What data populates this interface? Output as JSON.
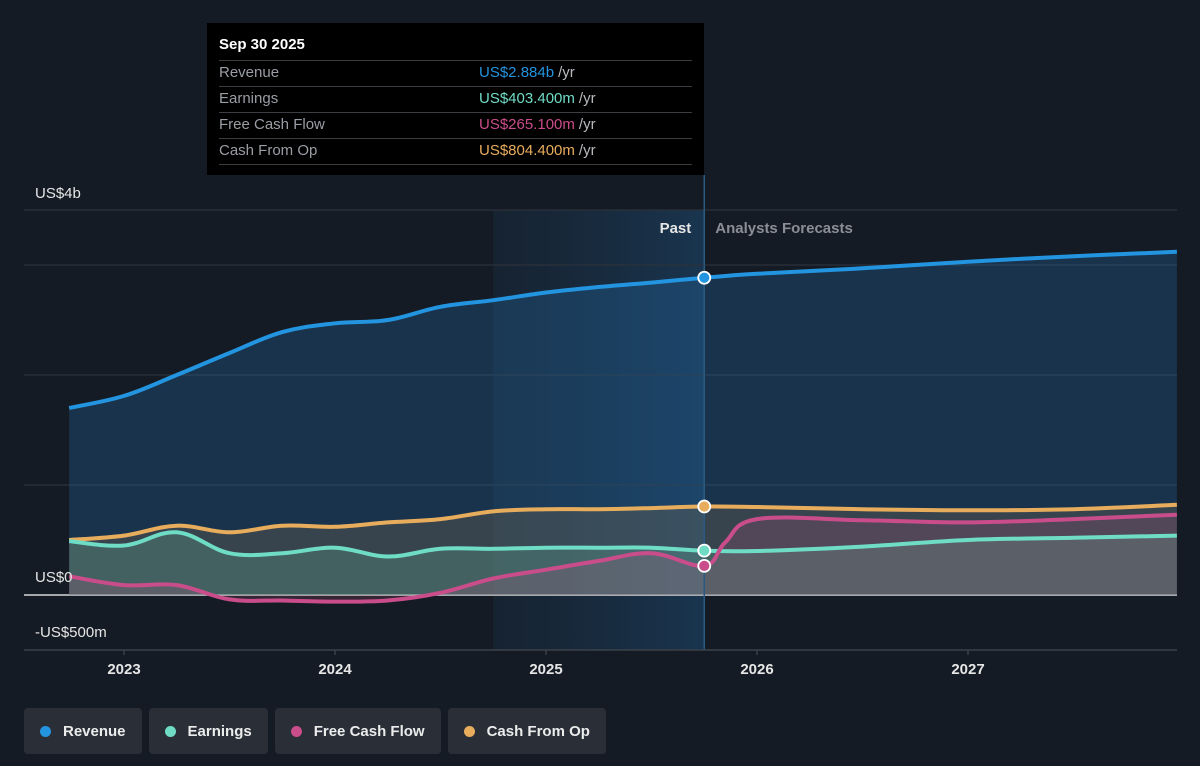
{
  "colors": {
    "revenue": "#2394df",
    "earnings": "#6fdcc6",
    "free_cash_flow": "#c94d8a",
    "cash_from_op": "#e8ad5c",
    "background": "#151b24"
  },
  "tooltip": {
    "date": "Sep 30 2025",
    "rows": [
      {
        "name": "Revenue",
        "value": "US$2.884b",
        "unit": "/yr"
      },
      {
        "name": "Earnings",
        "value": "US$403.400m",
        "unit": "/yr"
      },
      {
        "name": "Free Cash Flow",
        "value": "US$265.100m",
        "unit": "/yr"
      },
      {
        "name": "Cash From Op",
        "value": "US$804.400m",
        "unit": "/yr"
      }
    ]
  },
  "legend": [
    {
      "key": "revenue",
      "label": "Revenue"
    },
    {
      "key": "earnings",
      "label": "Earnings"
    },
    {
      "key": "free_cash_flow",
      "label": "Free Cash Flow"
    },
    {
      "key": "cash_from_op",
      "label": "Cash From Op"
    }
  ],
  "chart_data": {
    "type": "area",
    "title": "",
    "xlabel": "",
    "ylabel": "",
    "x_unit": "year",
    "y_unit": "US$ billions",
    "xlim": [
      2022.25,
      2027.99
    ],
    "ylim": [
      -0.5,
      3.5
    ],
    "y_tick_labels": [
      {
        "value": 3.5,
        "label": "US$4b"
      },
      {
        "value": 0,
        "label": "US$0"
      },
      {
        "value": -0.5,
        "label": "-US$500m"
      }
    ],
    "y_gridlines": [
      3.5,
      3.0,
      2.0,
      1.0,
      0,
      -0.5
    ],
    "x_ticks": [
      {
        "value": 2023,
        "label": "2023"
      },
      {
        "value": 2024,
        "label": "2024"
      },
      {
        "value": 2025,
        "label": "2025"
      },
      {
        "value": 2026,
        "label": "2026"
      },
      {
        "value": 2027,
        "label": "2027"
      }
    ],
    "regions": {
      "past_label": "Past",
      "forecast_label": "Analysts Forecasts",
      "highlight_start": 2024.75,
      "divider": 2025.75
    },
    "grid": true,
    "legend_position": "bottom-left",
    "series": [
      {
        "key": "revenue",
        "name": "Revenue",
        "past": [
          [
            2022.74,
            1.7
          ],
          [
            2023.0,
            1.81
          ],
          [
            2023.25,
            2.0
          ],
          [
            2023.5,
            2.2
          ],
          [
            2023.75,
            2.39
          ],
          [
            2024.0,
            2.47
          ],
          [
            2024.25,
            2.5
          ],
          [
            2024.5,
            2.62
          ],
          [
            2024.75,
            2.68
          ],
          [
            2025.0,
            2.75
          ],
          [
            2025.25,
            2.8
          ],
          [
            2025.5,
            2.84
          ],
          [
            2025.75,
            2.884
          ]
        ],
        "forecast": [
          [
            2025.75,
            2.884
          ],
          [
            2026.0,
            2.92
          ],
          [
            2026.5,
            2.97
          ],
          [
            2027.0,
            3.03
          ],
          [
            2027.5,
            3.08
          ],
          [
            2027.99,
            3.12
          ]
        ]
      },
      {
        "key": "cash_from_op",
        "name": "Cash From Op",
        "past": [
          [
            2022.74,
            0.5
          ],
          [
            2023.0,
            0.54
          ],
          [
            2023.25,
            0.63
          ],
          [
            2023.5,
            0.57
          ],
          [
            2023.75,
            0.63
          ],
          [
            2024.0,
            0.62
          ],
          [
            2024.25,
            0.66
          ],
          [
            2024.5,
            0.69
          ],
          [
            2024.75,
            0.76
          ],
          [
            2025.0,
            0.78
          ],
          [
            2025.25,
            0.78
          ],
          [
            2025.5,
            0.79
          ],
          [
            2025.75,
            0.804
          ]
        ],
        "forecast": [
          [
            2025.75,
            0.804
          ],
          [
            2026.0,
            0.8
          ],
          [
            2026.5,
            0.78
          ],
          [
            2027.0,
            0.77
          ],
          [
            2027.5,
            0.78
          ],
          [
            2027.99,
            0.82
          ]
        ]
      },
      {
        "key": "earnings",
        "name": "Earnings",
        "past": [
          [
            2022.74,
            0.49
          ],
          [
            2023.0,
            0.45
          ],
          [
            2023.25,
            0.57
          ],
          [
            2023.5,
            0.38
          ],
          [
            2023.75,
            0.38
          ],
          [
            2024.0,
            0.43
          ],
          [
            2024.25,
            0.35
          ],
          [
            2024.5,
            0.42
          ],
          [
            2024.75,
            0.42
          ],
          [
            2025.0,
            0.43
          ],
          [
            2025.25,
            0.43
          ],
          [
            2025.5,
            0.43
          ],
          [
            2025.75,
            0.403
          ]
        ],
        "forecast": [
          [
            2025.75,
            0.403
          ],
          [
            2026.0,
            0.4
          ],
          [
            2026.5,
            0.44
          ],
          [
            2027.0,
            0.5
          ],
          [
            2027.5,
            0.52
          ],
          [
            2027.99,
            0.54
          ]
        ]
      },
      {
        "key": "free_cash_flow",
        "name": "Free Cash Flow",
        "past": [
          [
            2022.74,
            0.17
          ],
          [
            2023.0,
            0.09
          ],
          [
            2023.25,
            0.09
          ],
          [
            2023.5,
            -0.04
          ],
          [
            2023.75,
            -0.05
          ],
          [
            2024.0,
            -0.06
          ],
          [
            2024.25,
            -0.05
          ],
          [
            2024.5,
            0.02
          ],
          [
            2024.75,
            0.15
          ],
          [
            2025.0,
            0.23
          ],
          [
            2025.25,
            0.31
          ],
          [
            2025.5,
            0.38
          ],
          [
            2025.75,
            0.265
          ]
        ],
        "forecast": [
          [
            2025.75,
            0.265
          ],
          [
            2025.85,
            0.48
          ],
          [
            2026.0,
            0.69
          ],
          [
            2026.5,
            0.68
          ],
          [
            2027.0,
            0.66
          ],
          [
            2027.5,
            0.69
          ],
          [
            2027.99,
            0.73
          ]
        ]
      }
    ],
    "highlight_point": {
      "x": 2025.75,
      "values": {
        "revenue": 2.884,
        "earnings": 0.4034,
        "free_cash_flow": 0.2651,
        "cash_from_op": 0.8044
      }
    }
  }
}
